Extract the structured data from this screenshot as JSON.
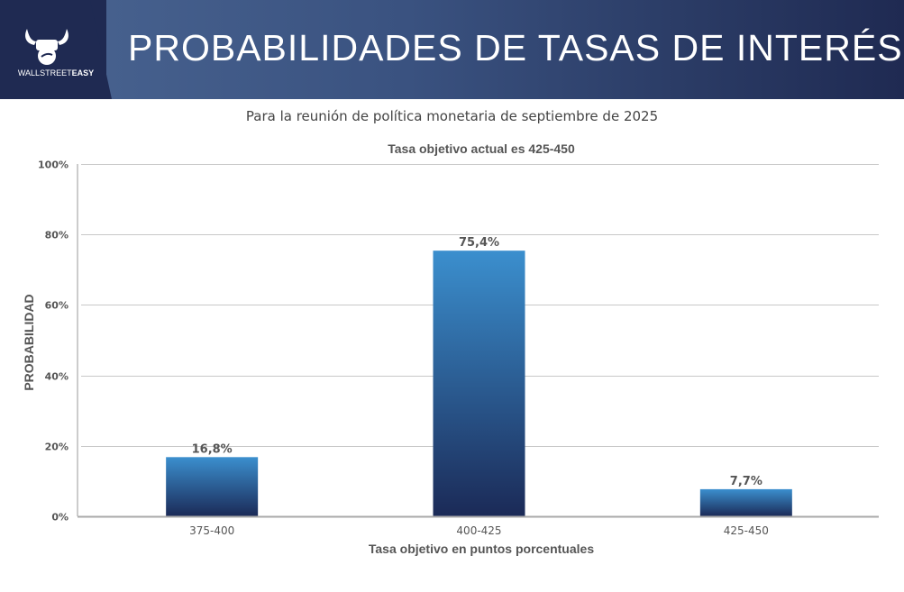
{
  "header": {
    "title": "PROBABILIDADES DE TASAS DE INTERÉS",
    "logo_text_light": "WALLSTREET",
    "logo_text_bold": "EASY",
    "logo_icon": "bull-fist-icon"
  },
  "subtitle": "Para la reunión de política monetaria de septiembre de 2025",
  "chart_data": {
    "type": "bar",
    "title": "Tasa objetivo actual es 425-450",
    "xlabel": "Tasa objetivo en puntos porcentuales",
    "ylabel": "PROBABILIDAD",
    "categories": [
      "375-400",
      "400-425",
      "425-450"
    ],
    "values": [
      16.8,
      75.4,
      7.7
    ],
    "value_labels": [
      "16,8%",
      "75,4%",
      "7,7%"
    ],
    "ylim": [
      0,
      100
    ],
    "yticks": [
      0,
      20,
      40,
      60,
      80,
      100
    ],
    "ytick_labels": [
      "0%",
      "20%",
      "40%",
      "60%",
      "80%",
      "100%"
    ],
    "grid": true,
    "colors": {
      "bar_top": "#3b8fce",
      "bar_bottom": "#1b2a57",
      "grid": "#c8c8c8",
      "axis": "#999999",
      "text": "#555555"
    }
  }
}
